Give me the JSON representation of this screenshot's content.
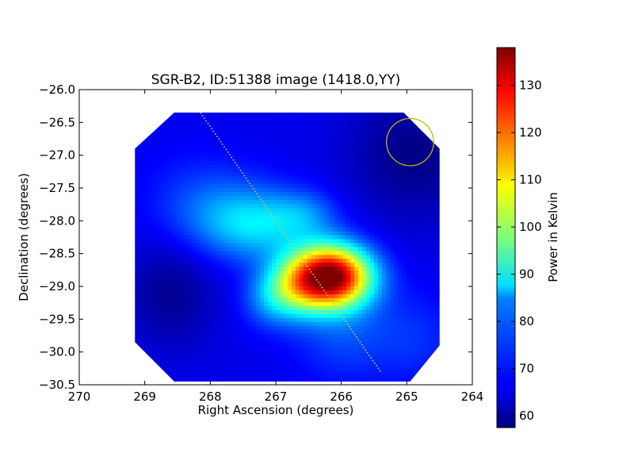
{
  "chart_data": {
    "type": "heatmap",
    "title": "SGR-B2, ID:51388 image (1418.0,YY)",
    "xlabel": "Right Ascension (degrees)",
    "ylabel": "Declination (degrees)",
    "xlim": [
      270,
      264
    ],
    "ylim": [
      -30.5,
      -26.0
    ],
    "x_ticks": [
      270,
      269,
      268,
      267,
      266,
      265,
      264
    ],
    "y_ticks": [
      -26.0,
      -26.5,
      -27.0,
      -27.5,
      -28.0,
      -28.5,
      -29.0,
      -29.5,
      -30.0,
      -30.5
    ],
    "x_tick_labels": [
      "270",
      "269",
      "268",
      "267",
      "266",
      "265",
      "264"
    ],
    "y_tick_labels": [
      "−26.0",
      "−26.5",
      "−27.0",
      "−27.5",
      "−28.0",
      "−28.5",
      "−29.0",
      "−29.5",
      "−30.0",
      "−30.5"
    ],
    "colorbar": {
      "label": "Power in Kelvin",
      "min": 57.5,
      "max": 138,
      "ticks": [
        60,
        70,
        80,
        90,
        100,
        110,
        120,
        130
      ],
      "tick_labels": [
        "60",
        "70",
        "80",
        "90",
        "100",
        "110",
        "120",
        "130"
      ],
      "colormap": "jet"
    },
    "background_level_K": 66,
    "sources": [
      {
        "ra": 266.15,
        "dec": -28.85,
        "peak_K": 72,
        "sigma_ra": 0.42,
        "sigma_dec": 0.33
      },
      {
        "ra": 266.7,
        "dec": -29.0,
        "peak_K": 20,
        "sigma_ra": 0.33,
        "sigma_dec": 0.33
      },
      {
        "ra": 267.1,
        "dec": -29.2,
        "peak_K": 10,
        "sigma_ra": 0.3,
        "sigma_dec": 0.3
      },
      {
        "ra": 267.3,
        "dec": -28.05,
        "peak_K": 18,
        "sigma_ra": 0.6,
        "sigma_dec": 0.38
      },
      {
        "ra": 266.55,
        "dec": -27.9,
        "peak_K": 8,
        "sigma_ra": 0.35,
        "sigma_dec": 0.25
      },
      {
        "ra": 268.1,
        "dec": -27.75,
        "peak_K": 7,
        "sigma_ra": 0.6,
        "sigma_dec": 0.5
      },
      {
        "ra": 268.6,
        "dec": -29.1,
        "peak_K": -7,
        "sigma_ra": 0.5,
        "sigma_dec": 0.6
      },
      {
        "ra": 266.0,
        "dec": -29.7,
        "peak_K": 7,
        "sigma_ra": 0.5,
        "sigma_dec": 0.5
      },
      {
        "ra": 264.9,
        "dec": -27.0,
        "peak_K": -8,
        "sigma_ra": 0.7,
        "sigma_dec": 0.7
      },
      {
        "ra": 264.9,
        "dec": -29.8,
        "peak_K": 5,
        "sigma_ra": 0.5,
        "sigma_dec": 0.5
      }
    ],
    "map_coverage_polygon": [
      {
        "ra": 268.55,
        "dec": -26.35
      },
      {
        "ra": 265.05,
        "dec": -26.35
      },
      {
        "ra": 264.5,
        "dec": -26.9
      },
      {
        "ra": 264.5,
        "dec": -29.9
      },
      {
        "ra": 264.95,
        "dec": -30.45
      },
      {
        "ra": 268.55,
        "dec": -30.45
      },
      {
        "ra": 269.15,
        "dec": -29.85
      },
      {
        "ra": 269.15,
        "dec": -26.9
      }
    ],
    "scan_track": {
      "start": {
        "ra": 268.15,
        "dec": -26.35
      },
      "end": {
        "ra": 265.4,
        "dec": -30.3
      },
      "color": "#d4c84a"
    },
    "beam_circle": {
      "ra": 264.95,
      "dec": -26.8,
      "radius_deg": 0.36,
      "color": "#c8b400"
    }
  }
}
